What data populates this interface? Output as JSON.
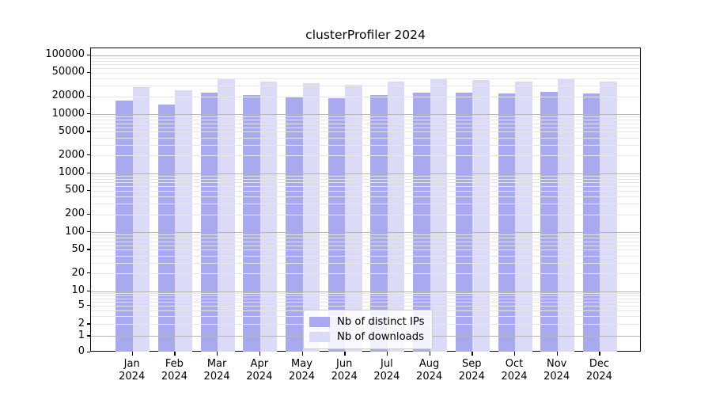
{
  "chart_data": {
    "type": "bar",
    "title": "clusterProfiler 2024",
    "categories": [
      "Jan 2024",
      "Feb 2024",
      "Mar 2024",
      "Apr 2024",
      "May 2024",
      "Jun 2024",
      "Jul 2024",
      "Aug 2024",
      "Sep 2024",
      "Oct 2024",
      "Nov 2024",
      "Dec 2024"
    ],
    "series": [
      {
        "name": "Nb of distinct IPs",
        "color": "#a9a9f0",
        "values": [
          17100,
          14300,
          22800,
          21000,
          19700,
          18700,
          21000,
          23300,
          23300,
          22400,
          23500,
          22500
        ]
      },
      {
        "name": "Nb of downloads",
        "color": "#dbdbf8",
        "values": [
          28700,
          25600,
          39800,
          35200,
          33700,
          31100,
          36000,
          39500,
          37500,
          35500,
          40000,
          35800
        ]
      }
    ],
    "yscale": "symlog",
    "ylim": [
      0,
      120000
    ],
    "yticks": [
      100000,
      50000,
      20000,
      10000,
      5000,
      2000,
      1000,
      500,
      200,
      100,
      50,
      20,
      10,
      5,
      2,
      1,
      0
    ],
    "grid": true,
    "grid_major_color": "#b4b4b4",
    "grid_minor_color": "#e6e6e6",
    "legend_position": "lower center",
    "legend": [
      "Nb of distinct IPs",
      "Nb of downloads"
    ]
  }
}
